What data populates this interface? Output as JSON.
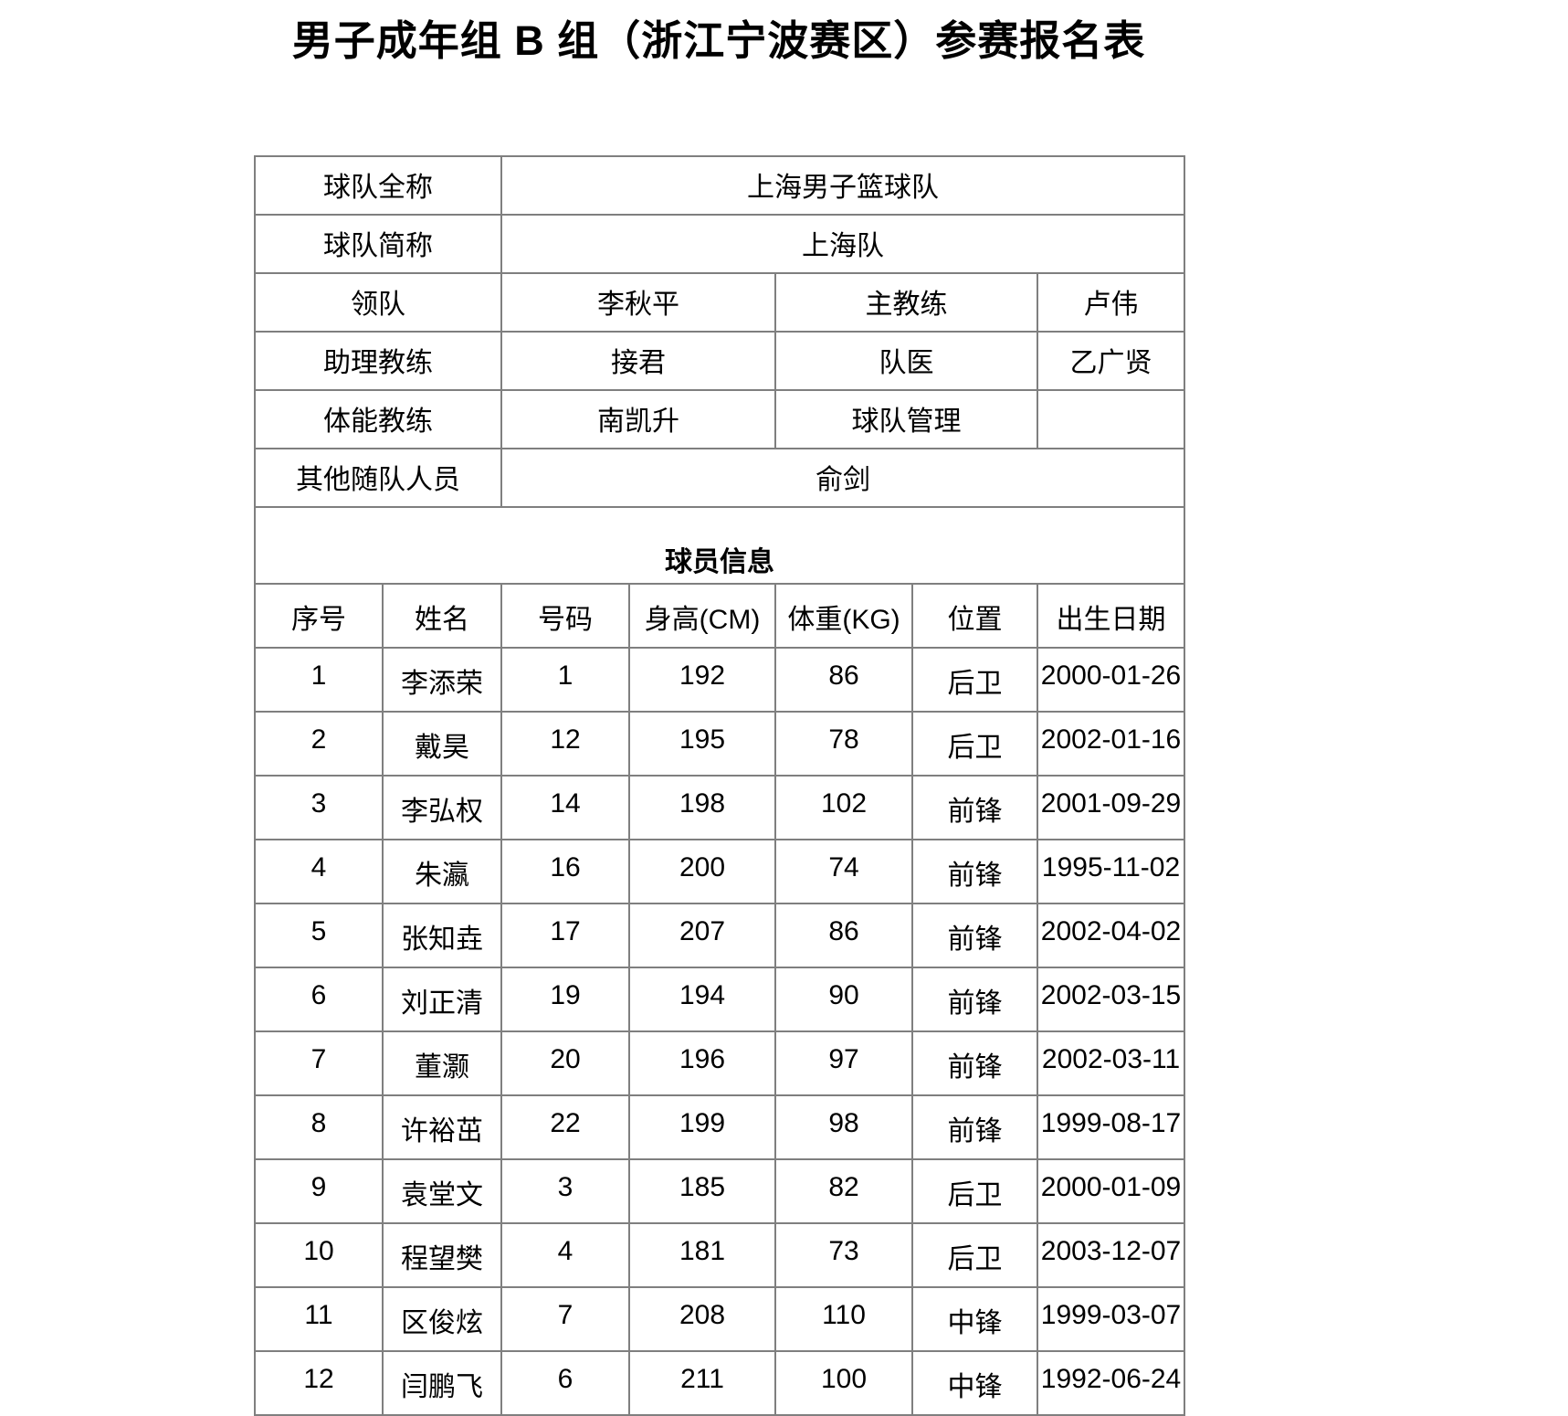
{
  "title": "男子成年组 B 组（浙江宁波赛区）参赛报名表",
  "team_info": {
    "full_name_label": "球队全称",
    "full_name": "上海男子篮球队",
    "short_name_label": "球队简称",
    "short_name": "上海队",
    "leader_label": "领队",
    "leader": "李秋平",
    "head_coach_label": "主教练",
    "head_coach": "卢伟",
    "assistant_coach_label": "助理教练",
    "assistant_coach": "接君",
    "team_doctor_label": "队医",
    "team_doctor": "乙广贤",
    "fitness_coach_label": "体能教练",
    "fitness_coach": "南凯升",
    "team_manager_label": "球队管理",
    "team_manager": "",
    "other_staff_label": "其他随队人员",
    "other_staff": "俞剑"
  },
  "players_section_title": "球员信息",
  "players": {
    "headers": [
      "序号",
      "姓名",
      "号码",
      "身高(CM)",
      "体重(KG)",
      "位置",
      "出生日期"
    ],
    "rows": [
      {
        "no": "1",
        "name": "李添荣",
        "number": "1",
        "height": "192",
        "weight": "86",
        "position": "后卫",
        "birth": "2000-01-26"
      },
      {
        "no": "2",
        "name": "戴昊",
        "number": "12",
        "height": "195",
        "weight": "78",
        "position": "后卫",
        "birth": "2002-01-16"
      },
      {
        "no": "3",
        "name": "李弘权",
        "number": "14",
        "height": "198",
        "weight": "102",
        "position": "前锋",
        "birth": "2001-09-29"
      },
      {
        "no": "4",
        "name": "朱瀛",
        "number": "16",
        "height": "200",
        "weight": "74",
        "position": "前锋",
        "birth": "1995-11-02"
      },
      {
        "no": "5",
        "name": "张知垚",
        "number": "17",
        "height": "207",
        "weight": "86",
        "position": "前锋",
        "birth": "2002-04-02"
      },
      {
        "no": "6",
        "name": "刘正清",
        "number": "19",
        "height": "194",
        "weight": "90",
        "position": "前锋",
        "birth": "2002-03-15"
      },
      {
        "no": "7",
        "name": "董灏",
        "number": "20",
        "height": "196",
        "weight": "97",
        "position": "前锋",
        "birth": "2002-03-11"
      },
      {
        "no": "8",
        "name": "许裕茁",
        "number": "22",
        "height": "199",
        "weight": "98",
        "position": "前锋",
        "birth": "1999-08-17"
      },
      {
        "no": "9",
        "name": "袁堂文",
        "number": "3",
        "height": "185",
        "weight": "82",
        "position": "后卫",
        "birth": "2000-01-09"
      },
      {
        "no": "10",
        "name": "程望樊",
        "number": "4",
        "height": "181",
        "weight": "73",
        "position": "后卫",
        "birth": "2003-12-07"
      },
      {
        "no": "11",
        "name": "区俊炫",
        "number": "7",
        "height": "208",
        "weight": "110",
        "position": "中锋",
        "birth": "1999-03-07"
      },
      {
        "no": "12",
        "name": "闫鹏飞",
        "number": "6",
        "height": "211",
        "weight": "100",
        "position": "中锋",
        "birth": "1992-06-24"
      }
    ]
  }
}
